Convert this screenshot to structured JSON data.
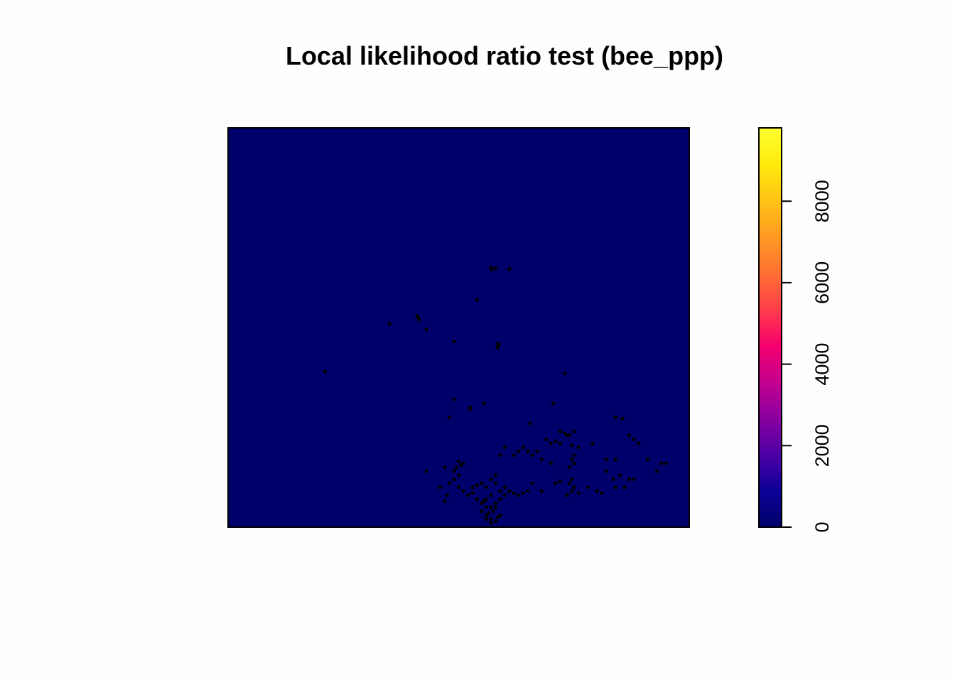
{
  "chart_data": {
    "type": "heatmap",
    "title": "Local likelihood ratio test (bee_ppp)",
    "background_color": "#00006a",
    "point_color": "#000000",
    "colorbar": {
      "range": [
        0,
        9800
      ],
      "ticks": [
        0,
        2000,
        4000,
        6000,
        8000
      ],
      "tick_labels": [
        "0",
        "2000",
        "4000",
        "6000",
        "8000"
      ],
      "palette": [
        "#00006a",
        "#0d0096",
        "#4c00a5",
        "#8a009f",
        "#c5008f",
        "#f5006d",
        "#ff3d4a",
        "#ff7033",
        "#ff9a22",
        "#ffc315",
        "#ffeb0c",
        "#ffff30"
      ]
    },
    "points": [
      [
        0.21,
        0.39
      ],
      [
        0.35,
        0.51
      ],
      [
        0.41,
        0.53
      ],
      [
        0.412,
        0.525
      ],
      [
        0.414,
        0.52
      ],
      [
        0.43,
        0.495
      ],
      [
        0.57,
        0.65
      ],
      [
        0.58,
        0.648
      ],
      [
        0.572,
        0.645
      ],
      [
        0.61,
        0.647
      ],
      [
        0.54,
        0.57
      ],
      [
        0.49,
        0.465
      ],
      [
        0.585,
        0.46
      ],
      [
        0.587,
        0.455
      ],
      [
        0.584,
        0.45
      ],
      [
        0.73,
        0.385
      ],
      [
        0.49,
        0.32
      ],
      [
        0.525,
        0.3
      ],
      [
        0.555,
        0.31
      ],
      [
        0.525,
        0.295
      ],
      [
        0.705,
        0.31
      ],
      [
        0.48,
        0.275
      ],
      [
        0.84,
        0.275
      ],
      [
        0.855,
        0.272
      ],
      [
        0.655,
        0.26
      ],
      [
        0.73,
        0.235
      ],
      [
        0.74,
        0.23
      ],
      [
        0.72,
        0.24
      ],
      [
        0.75,
        0.24
      ],
      [
        0.735,
        0.23
      ],
      [
        0.7,
        0.21
      ],
      [
        0.71,
        0.215
      ],
      [
        0.72,
        0.21
      ],
      [
        0.69,
        0.22
      ],
      [
        0.745,
        0.205
      ],
      [
        0.76,
        0.2
      ],
      [
        0.79,
        0.21
      ],
      [
        0.82,
        0.17
      ],
      [
        0.84,
        0.17
      ],
      [
        0.87,
        0.23
      ],
      [
        0.88,
        0.22
      ],
      [
        0.89,
        0.21
      ],
      [
        0.91,
        0.17
      ],
      [
        0.95,
        0.16
      ],
      [
        0.94,
        0.16
      ],
      [
        0.93,
        0.14
      ],
      [
        0.88,
        0.12
      ],
      [
        0.75,
        0.18
      ],
      [
        0.745,
        0.17
      ],
      [
        0.75,
        0.16
      ],
      [
        0.74,
        0.15
      ],
      [
        0.745,
        0.12
      ],
      [
        0.74,
        0.11
      ],
      [
        0.75,
        0.1
      ],
      [
        0.745,
        0.09
      ],
      [
        0.76,
        0.085
      ],
      [
        0.735,
        0.08
      ],
      [
        0.8,
        0.09
      ],
      [
        0.81,
        0.085
      ],
      [
        0.78,
        0.1
      ],
      [
        0.82,
        0.14
      ],
      [
        0.835,
        0.12
      ],
      [
        0.84,
        0.1
      ],
      [
        0.86,
        0.1
      ],
      [
        0.85,
        0.13
      ],
      [
        0.87,
        0.12
      ],
      [
        0.62,
        0.18
      ],
      [
        0.63,
        0.19
      ],
      [
        0.6,
        0.2
      ],
      [
        0.59,
        0.18
      ],
      [
        0.66,
        0.18
      ],
      [
        0.67,
        0.19
      ],
      [
        0.65,
        0.19
      ],
      [
        0.64,
        0.2
      ],
      [
        0.68,
        0.17
      ],
      [
        0.7,
        0.16
      ],
      [
        0.71,
        0.11
      ],
      [
        0.72,
        0.115
      ],
      [
        0.43,
        0.14
      ],
      [
        0.47,
        0.15
      ],
      [
        0.49,
        0.14
      ],
      [
        0.5,
        0.13
      ],
      [
        0.49,
        0.12
      ],
      [
        0.48,
        0.11
      ],
      [
        0.5,
        0.1
      ],
      [
        0.51,
        0.09
      ],
      [
        0.52,
        0.08
      ],
      [
        0.53,
        0.085
      ],
      [
        0.54,
        0.07
      ],
      [
        0.55,
        0.06
      ],
      [
        0.56,
        0.05
      ],
      [
        0.55,
        0.04
      ],
      [
        0.56,
        0.03
      ],
      [
        0.57,
        0.02
      ],
      [
        0.58,
        0.015
      ],
      [
        0.57,
        0.01
      ],
      [
        0.56,
        0.02
      ],
      [
        0.575,
        0.04
      ],
      [
        0.58,
        0.06
      ],
      [
        0.59,
        0.07
      ],
      [
        0.6,
        0.08
      ],
      [
        0.61,
        0.09
      ],
      [
        0.62,
        0.085
      ],
      [
        0.63,
        0.08
      ],
      [
        0.64,
        0.085
      ],
      [
        0.65,
        0.09
      ],
      [
        0.6,
        0.1
      ],
      [
        0.58,
        0.11
      ],
      [
        0.57,
        0.12
      ],
      [
        0.56,
        0.1
      ],
      [
        0.55,
        0.11
      ],
      [
        0.54,
        0.105
      ],
      [
        0.53,
        0.1
      ],
      [
        0.58,
        0.13
      ],
      [
        0.59,
        0.09
      ],
      [
        0.57,
        0.08
      ],
      [
        0.56,
        0.07
      ],
      [
        0.58,
        0.05
      ],
      [
        0.59,
        0.03
      ],
      [
        0.57,
        0.05
      ],
      [
        0.555,
        0.065
      ],
      [
        0.565,
        0.035
      ],
      [
        0.585,
        0.025
      ],
      [
        0.475,
        0.08
      ],
      [
        0.46,
        0.1
      ],
      [
        0.47,
        0.065
      ],
      [
        0.5,
        0.165
      ],
      [
        0.505,
        0.155
      ],
      [
        0.51,
        0.16
      ],
      [
        0.495,
        0.15
      ],
      [
        0.66,
        0.11
      ],
      [
        0.68,
        0.09
      ]
    ]
  }
}
